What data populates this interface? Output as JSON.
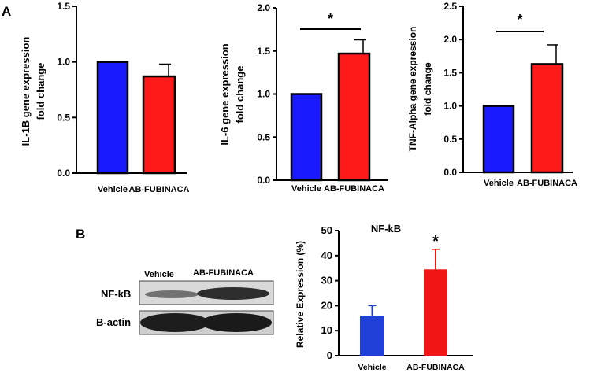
{
  "panel_labels": {
    "a": "A",
    "b": "B"
  },
  "colors": {
    "vehicle": "#1a1aff",
    "treatment": "#ff1a1a",
    "vehicle_b": "#1f3fd6",
    "treatment_b": "#f01616"
  },
  "blot": {
    "header_vehicle": "Vehicle",
    "header_treatment": "AB-FUBINACA",
    "row1_label": "NF-kB",
    "row2_label": "B-actin"
  },
  "chart_data": [
    {
      "type": "bar",
      "title": "",
      "categories": [
        "Vehicle",
        "AB-FUBINACA"
      ],
      "values": [
        1.0,
        0.87
      ],
      "errors": [
        0,
        0.11
      ],
      "ylabel_line1": "IL-1B gene expression",
      "ylabel_line2": "fold change",
      "ylim": [
        0,
        1.5
      ],
      "yticks": [
        "0.0",
        "0.5",
        "1.0",
        "1.5"
      ],
      "significance": ""
    },
    {
      "type": "bar",
      "title": "",
      "categories": [
        "Vehicle",
        "AB-FUBINACA"
      ],
      "values": [
        1.0,
        1.47
      ],
      "errors": [
        0,
        0.16
      ],
      "ylabel_line1": "IL-6 gene expression",
      "ylabel_line2": "fold change",
      "ylim": [
        0,
        2.0
      ],
      "yticks": [
        "0.0",
        "0.5",
        "1.0",
        "1.5",
        "2.0"
      ],
      "significance": "*"
    },
    {
      "type": "bar",
      "title": "",
      "categories": [
        "Vehicle",
        "AB-FUBINACA"
      ],
      "values": [
        1.0,
        1.63
      ],
      "errors": [
        0,
        0.29
      ],
      "ylabel_line1": "TNF-Alpha gene expression",
      "ylabel_line2": "fold change",
      "ylim": [
        0,
        2.5
      ],
      "yticks": [
        "0.0",
        "0.5",
        "1.0",
        "1.5",
        "2.0",
        "2.5"
      ],
      "significance": "*"
    },
    {
      "type": "bar",
      "title": "NF-kB",
      "categories": [
        "Vehicle",
        "AB-FUBINACA"
      ],
      "values": [
        16,
        34.5
      ],
      "errors": [
        4,
        8
      ],
      "ylabel_line1": "Relative Expression (%)",
      "ylabel_line2": "",
      "ylim": [
        0,
        50
      ],
      "yticks": [
        "0",
        "10",
        "20",
        "30",
        "40",
        "50"
      ],
      "significance": "*"
    }
  ]
}
